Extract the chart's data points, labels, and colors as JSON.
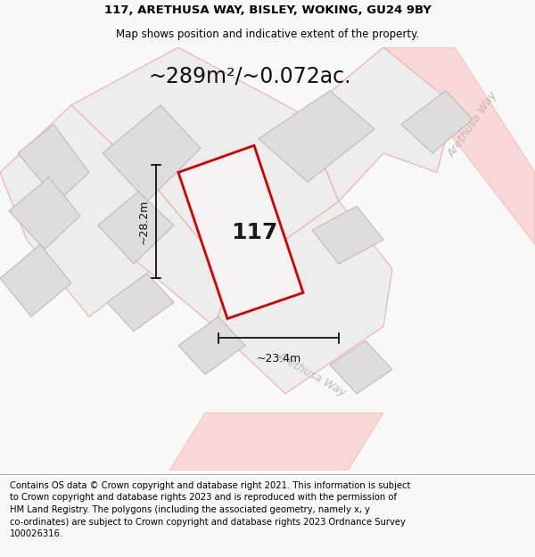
{
  "title_line1": "117, ARETHUSA WAY, BISLEY, WOKING, GU24 9BY",
  "title_line2": "Map shows position and indicative extent of the property.",
  "area_text": "~289m²/~0.072ac.",
  "property_number": "117",
  "dim_width": "~23.4m",
  "dim_height": "~28.2m",
  "street_label_bottom": "Arethusa Way",
  "street_label_right": "Arethusa Way",
  "footer_text": "Contains OS data © Crown copyright and database right 2021. This information is subject to Crown copyright and database rights 2023 and is reproduced with the permission of HM Land Registry. The polygons (including the associated geometry, namely x, y co-ordinates) are subject to Crown copyright and database rights 2023 Ordnance Survey 100026316.",
  "bg_color": "#f8f8f8",
  "map_bg": "#f2f0f0",
  "title_bg": "#f8f8f8",
  "plot_color_red": "#d40000",
  "plot_fill": "#eeeded",
  "building_fill": "#dedcdc",
  "building_stroke": "#b8b5b5",
  "plot_stroke": "#e8b0b0",
  "road_color": "#fad8d8",
  "road_stroke": "#e8b0b0",
  "footer_bg": "#ffffff",
  "title_fontsize": 9.5,
  "subtitle_fontsize": 8.5,
  "area_fontsize": 17,
  "number_fontsize": 18,
  "dim_fontsize": 9,
  "footer_fontsize": 7.2,
  "street_fontsize": 9,
  "street_color": "#c0b8b8"
}
